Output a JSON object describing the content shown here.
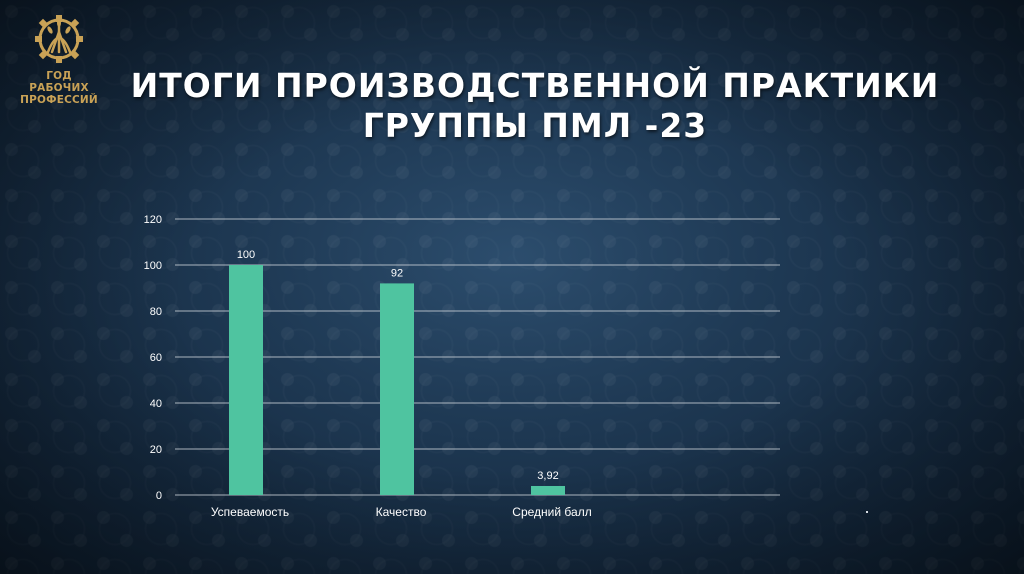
{
  "logo": {
    "line1": "ГОД РАБОЧИХ",
    "line2": "ПРОФЕССИЙ",
    "icon": "gear-wheat-icon",
    "color": "#c9a256"
  },
  "title": {
    "line1": "ИТОГИ ПРОИЗВОДСТВЕННОЙ ПРАКТИКИ",
    "line2": "ГРУППЫ ПМЛ -23"
  },
  "chart_data": {
    "type": "bar",
    "categories": [
      "Успеваемость",
      "Качество",
      "Средний балл"
    ],
    "values": [
      100,
      92,
      3.92
    ],
    "value_labels": [
      "100",
      "92",
      "3,92"
    ],
    "yticks": [
      "0",
      "20",
      "40",
      "60",
      "80",
      "100",
      "120"
    ],
    "ylim": [
      0,
      120
    ],
    "grid": true,
    "bar_color": "#4fc4a0",
    "title": "",
    "xlabel": "",
    "ylabel": ""
  }
}
